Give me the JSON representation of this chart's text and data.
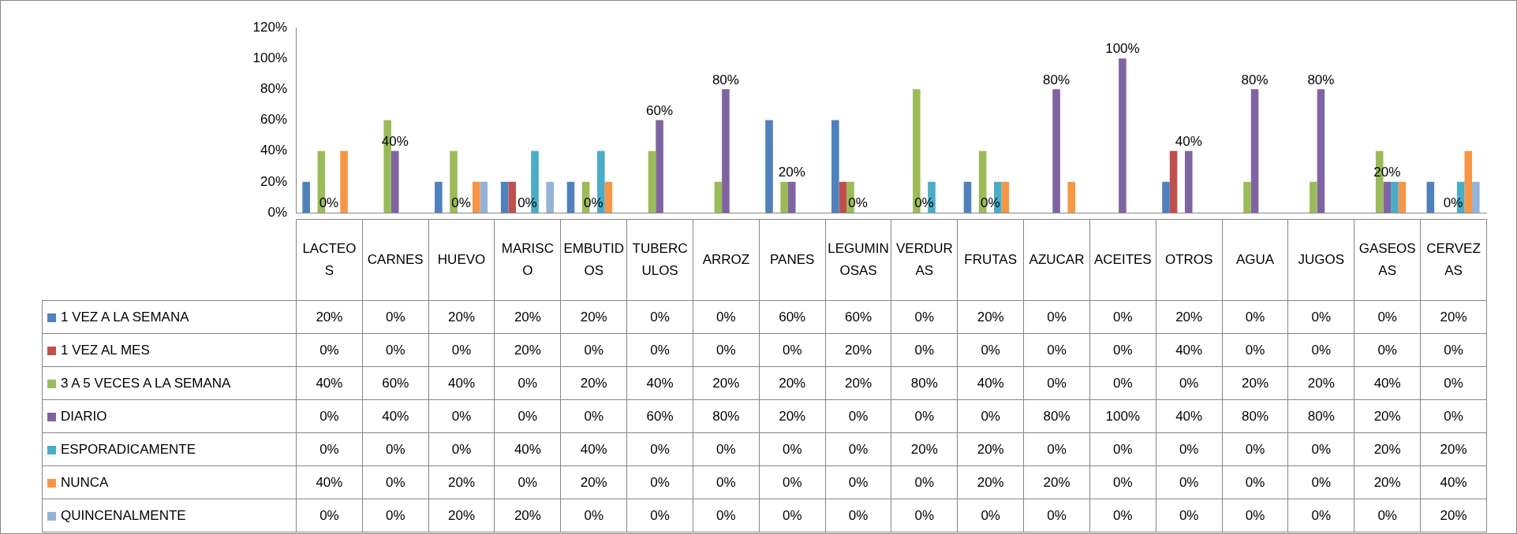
{
  "chart_data": {
    "type": "bar",
    "categories": [
      "LACTEOS",
      "CARNES",
      "HUEVO",
      "MARISCO",
      "EMBUTIDOS",
      "TUBERCULOS",
      "ARROZ",
      "PANES",
      "LEGUMINOSAS",
      "VERDURAS",
      "FRUTAS",
      "AZUCAR",
      "ACEITES",
      "OTROS",
      "AGUA",
      "JUGOS",
      "GASEOSAS",
      "CERVEZAS"
    ],
    "ylim": [
      0,
      120
    ],
    "yticks": [
      {
        "value": 0,
        "label": "0%"
      },
      {
        "value": 20,
        "label": "20%"
      },
      {
        "value": 40,
        "label": "40%"
      },
      {
        "value": 60,
        "label": "60%"
      },
      {
        "value": 80,
        "label": "80%"
      },
      {
        "value": 100,
        "label": "100%"
      },
      {
        "value": 120,
        "label": "120%"
      }
    ],
    "legend": "bottom",
    "series": [
      {
        "name": "1 VEZ A LA SEMANA",
        "color": "#4f81bd",
        "values": [
          20,
          0,
          20,
          20,
          20,
          0,
          0,
          60,
          60,
          0,
          20,
          0,
          0,
          20,
          0,
          0,
          0,
          20
        ],
        "value_labels": [
          "20%",
          "0%",
          "20%",
          "20%",
          "20%",
          "0%",
          "0%",
          "60%",
          "60%",
          "0%",
          "20%",
          "0%",
          "0%",
          "20%",
          "0%",
          "0%",
          "0%",
          "20%"
        ]
      },
      {
        "name": "1 VEZ AL MES",
        "color": "#c0504d",
        "values": [
          0,
          0,
          0,
          20,
          0,
          0,
          0,
          0,
          20,
          0,
          0,
          0,
          0,
          40,
          0,
          0,
          0,
          0
        ],
        "value_labels": [
          "0%",
          "0%",
          "0%",
          "20%",
          "0%",
          "0%",
          "0%",
          "0%",
          "20%",
          "0%",
          "0%",
          "0%",
          "0%",
          "40%",
          "0%",
          "0%",
          "0%",
          "0%"
        ]
      },
      {
        "name": "3 A 5 VECES A LA SEMANA",
        "color": "#9bbb59",
        "values": [
          40,
          60,
          40,
          0,
          20,
          40,
          20,
          20,
          20,
          80,
          40,
          0,
          0,
          0,
          20,
          20,
          40,
          0
        ],
        "value_labels": [
          "40%",
          "60%",
          "40%",
          "0%",
          "20%",
          "40%",
          "20%",
          "20%",
          "20%",
          "80%",
          "40%",
          "0%",
          "0%",
          "0%",
          "20%",
          "20%",
          "40%",
          "0%"
        ]
      },
      {
        "name": "DIARIO",
        "color": "#8064a2",
        "data_labels": true,
        "values": [
          0,
          40,
          0,
          0,
          0,
          60,
          80,
          20,
          0,
          0,
          0,
          80,
          100,
          40,
          80,
          80,
          20,
          0
        ],
        "value_labels": [
          "0%",
          "40%",
          "0%",
          "0%",
          "0%",
          "60%",
          "80%",
          "20%",
          "0%",
          "0%",
          "0%",
          "80%",
          "100%",
          "40%",
          "80%",
          "80%",
          "20%",
          "0%"
        ]
      },
      {
        "name": "ESPORADICAMENTE",
        "color": "#4bacc6",
        "values": [
          0,
          0,
          0,
          40,
          40,
          0,
          0,
          0,
          0,
          20,
          20,
          0,
          0,
          0,
          0,
          0,
          20,
          20
        ],
        "value_labels": [
          "0%",
          "0%",
          "0%",
          "40%",
          "40%",
          "0%",
          "0%",
          "0%",
          "0%",
          "20%",
          "20%",
          "0%",
          "0%",
          "0%",
          "0%",
          "0%",
          "20%",
          "20%"
        ]
      },
      {
        "name": "NUNCA",
        "color": "#f79646",
        "values": [
          40,
          0,
          20,
          0,
          20,
          0,
          0,
          0,
          0,
          0,
          20,
          20,
          0,
          0,
          0,
          0,
          20,
          40
        ],
        "value_labels": [
          "40%",
          "0%",
          "20%",
          "0%",
          "20%",
          "0%",
          "0%",
          "0%",
          "0%",
          "0%",
          "20%",
          "20%",
          "0%",
          "0%",
          "0%",
          "0%",
          "20%",
          "40%"
        ]
      },
      {
        "name": "QUINCENALMENTE",
        "color": "#95b3d7",
        "values": [
          0,
          0,
          20,
          20,
          0,
          0,
          0,
          0,
          0,
          0,
          0,
          0,
          0,
          0,
          0,
          0,
          0,
          20
        ],
        "value_labels": [
          "0%",
          "0%",
          "20%",
          "20%",
          "0%",
          "0%",
          "0%",
          "0%",
          "0%",
          "0%",
          "0%",
          "0%",
          "0%",
          "0%",
          "0%",
          "0%",
          "0%",
          "20%"
        ]
      }
    ]
  }
}
